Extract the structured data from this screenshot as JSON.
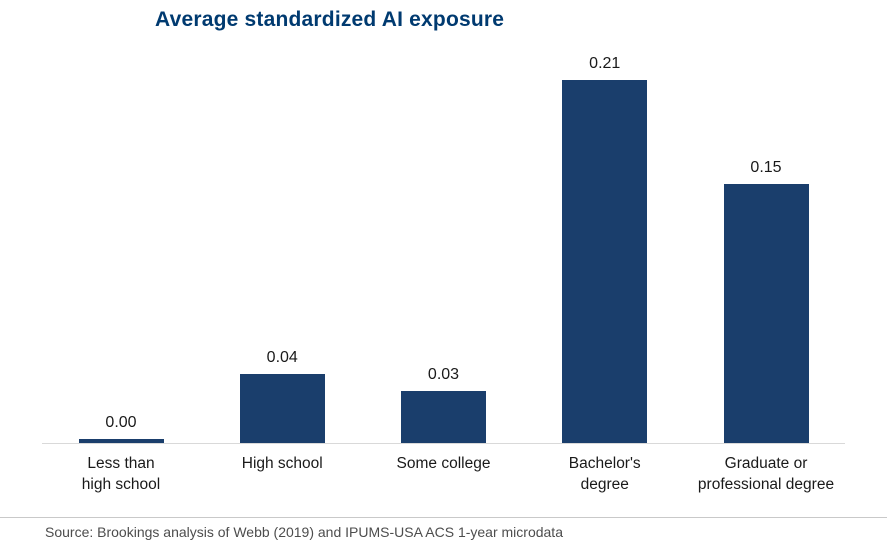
{
  "title": "Average standardized AI exposure",
  "source": "Source: Brookings analysis of Webb (2019) and IPUMS-USA ACS 1-year microdata",
  "colors": {
    "bar": "#1a3e6c",
    "title": "#003a70",
    "axis": "#d9d9d9"
  },
  "chart_data": {
    "type": "bar",
    "title": "Average standardized AI exposure",
    "categories": [
      "Less than\nhigh school",
      "High school",
      "Some college",
      "Bachelor's\ndegree",
      "Graduate or\nprofessional degree"
    ],
    "values": [
      0.0,
      0.04,
      0.03,
      0.21,
      0.15
    ],
    "value_labels": [
      "0.00",
      "0.04",
      "0.03",
      "0.21",
      "0.15"
    ],
    "xlabel": "",
    "ylabel": "",
    "ylim": [
      0,
      0.21
    ],
    "grid": false,
    "legend": "none",
    "source": "Source: Brookings analysis of Webb (2019) and IPUMS-USA ACS 1-year microdata"
  }
}
